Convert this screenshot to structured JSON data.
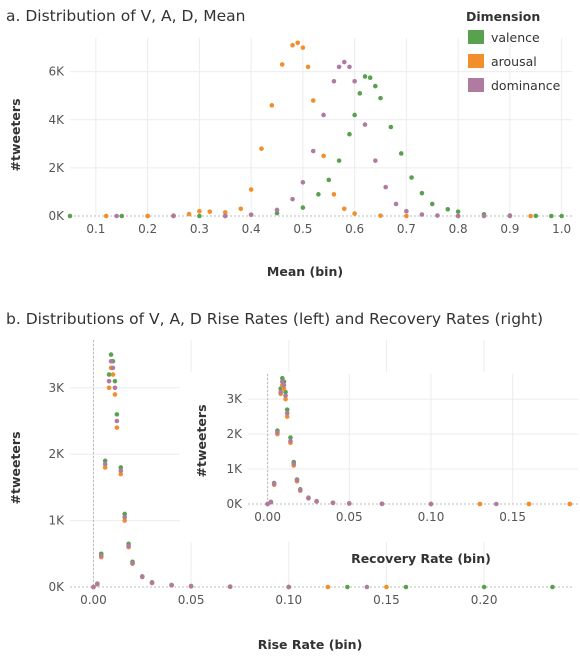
{
  "colors": {
    "valence": "#59a14f",
    "arousal": "#f28e2b",
    "dominance": "#b07aa1"
  },
  "chart_data": [
    {
      "type": "scatter",
      "title": "a. Distribution of V, A, D, Mean",
      "xlabel": "Mean (bin)",
      "ylabel": "#tweeters",
      "xlim": [
        0.05,
        1.02
      ],
      "ylim": [
        0,
        7400
      ],
      "xticks": [
        {
          "v": 0.1,
          "label": "0.1"
        },
        {
          "v": 0.2,
          "label": "0.2"
        },
        {
          "v": 0.3,
          "label": "0.3"
        },
        {
          "v": 0.4,
          "label": "0.4"
        },
        {
          "v": 0.5,
          "label": "0.5"
        },
        {
          "v": 0.6,
          "label": "0.6"
        },
        {
          "v": 0.7,
          "label": "0.7"
        },
        {
          "v": 0.8,
          "label": "0.8"
        },
        {
          "v": 0.9,
          "label": "0.9"
        },
        {
          "v": 1.0,
          "label": "1.0"
        }
      ],
      "yticks": [
        {
          "v": 0,
          "label": "0K"
        },
        {
          "v": 2000,
          "label": "2K"
        },
        {
          "v": 4000,
          "label": "4K"
        },
        {
          "v": 6000,
          "label": "6K"
        }
      ],
      "grid": true,
      "legend": {
        "title": "Dimension",
        "position": "top-right",
        "items": [
          {
            "key": "valence",
            "label": "valence"
          },
          {
            "key": "arousal",
            "label": "arousal"
          },
          {
            "key": "dominance",
            "label": "dominance"
          }
        ]
      },
      "series": [
        {
          "key": "valence",
          "x": [
            0.05,
            0.15,
            0.2,
            0.25,
            0.3,
            0.35,
            0.4,
            0.45,
            0.5,
            0.53,
            0.55,
            0.57,
            0.59,
            0.6,
            0.61,
            0.62,
            0.63,
            0.64,
            0.65,
            0.67,
            0.69,
            0.71,
            0.73,
            0.75,
            0.78,
            0.8,
            0.85,
            0.9,
            0.95,
            0.98,
            1.0
          ],
          "y": [
            0,
            0,
            0,
            0,
            0,
            0,
            50,
            120,
            350,
            900,
            1500,
            2300,
            3400,
            4200,
            5100,
            5800,
            5750,
            5400,
            4900,
            3700,
            2600,
            1600,
            950,
            500,
            280,
            180,
            70,
            20,
            5,
            0,
            0
          ]
        },
        {
          "key": "arousal",
          "x": [
            0.12,
            0.2,
            0.25,
            0.28,
            0.3,
            0.32,
            0.35,
            0.38,
            0.4,
            0.42,
            0.44,
            0.46,
            0.48,
            0.49,
            0.5,
            0.51,
            0.52,
            0.54,
            0.56,
            0.58,
            0.6,
            0.65,
            0.7,
            0.8,
            0.94
          ],
          "y": [
            0,
            0,
            20,
            80,
            200,
            180,
            150,
            300,
            1100,
            2800,
            4600,
            6300,
            7100,
            7200,
            7000,
            6200,
            4800,
            2500,
            900,
            300,
            100,
            15,
            0,
            0,
            0
          ]
        },
        {
          "key": "dominance",
          "x": [
            0.14,
            0.25,
            0.35,
            0.4,
            0.45,
            0.48,
            0.5,
            0.52,
            0.54,
            0.56,
            0.57,
            0.58,
            0.59,
            0.6,
            0.62,
            0.64,
            0.66,
            0.68,
            0.7,
            0.73,
            0.76,
            0.8,
            0.85,
            0.9
          ],
          "y": [
            0,
            0,
            0,
            50,
            250,
            700,
            1400,
            2700,
            4200,
            5600,
            6200,
            6400,
            6200,
            5600,
            3800,
            2300,
            1200,
            500,
            200,
            60,
            20,
            0,
            0,
            0
          ]
        }
      ]
    },
    {
      "type": "scatter",
      "title": "b. Distributions of V, A, D Rise Rates (left) and Recovery Rates (right)",
      "xlabel": "Rise Rate (bin)",
      "ylabel": "#tweeters",
      "xlim": [
        -0.012,
        0.245
      ],
      "ylim": [
        0,
        3720
      ],
      "xticks": [
        {
          "v": 0.0,
          "label": "0.00"
        },
        {
          "v": 0.05,
          "label": "0.05"
        },
        {
          "v": 0.1,
          "label": "0.10"
        },
        {
          "v": 0.15,
          "label": "0.15"
        },
        {
          "v": 0.2,
          "label": "0.20"
        }
      ],
      "yticks": [
        {
          "v": 0,
          "label": "0K"
        },
        {
          "v": 1000,
          "label": "1K"
        },
        {
          "v": 2000,
          "label": "2K"
        },
        {
          "v": 3000,
          "label": "3K"
        }
      ],
      "grid": true,
      "series": [
        {
          "key": "valence",
          "x": [
            0,
            0.002,
            0.004,
            0.006,
            0.008,
            0.009,
            0.01,
            0.011,
            0.012,
            0.014,
            0.016,
            0.018,
            0.02,
            0.025,
            0.03,
            0.04,
            0.05,
            0.07,
            0.1,
            0.13,
            0.16,
            0.2,
            0.235
          ],
          "y": [
            0,
            50,
            500,
            1900,
            3200,
            3500,
            3400,
            3100,
            2600,
            1800,
            1100,
            650,
            380,
            160,
            70,
            30,
            15,
            5,
            0,
            0,
            0,
            0,
            0
          ]
        },
        {
          "key": "arousal",
          "x": [
            0,
            0.002,
            0.004,
            0.006,
            0.008,
            0.009,
            0.01,
            0.011,
            0.012,
            0.014,
            0.016,
            0.018,
            0.02,
            0.025,
            0.03,
            0.04,
            0.05,
            0.07,
            0.1,
            0.12,
            0.15
          ],
          "y": [
            0,
            40,
            450,
            1800,
            3000,
            3300,
            3200,
            2900,
            2400,
            1700,
            1000,
            600,
            350,
            150,
            60,
            25,
            10,
            3,
            0,
            0,
            0
          ]
        },
        {
          "key": "dominance",
          "x": [
            0,
            0.002,
            0.004,
            0.006,
            0.008,
            0.009,
            0.01,
            0.011,
            0.012,
            0.014,
            0.016,
            0.018,
            0.02,
            0.025,
            0.03,
            0.04,
            0.05,
            0.07,
            0.1,
            0.14
          ],
          "y": [
            0,
            45,
            470,
            1850,
            3100,
            3400,
            3300,
            3000,
            2500,
            1750,
            1050,
            620,
            360,
            155,
            65,
            28,
            12,
            4,
            0,
            0
          ]
        }
      ]
    },
    {
      "type": "scatter",
      "title": "",
      "xlabel": "Recovery Rate (bin)",
      "ylabel": "#tweeters",
      "xlim": [
        -0.012,
        0.19
      ],
      "ylim": [
        0,
        3720
      ],
      "xticks": [
        {
          "v": 0.0,
          "label": "0.00"
        },
        {
          "v": 0.05,
          "label": "0.05"
        },
        {
          "v": 0.1,
          "label": "0.10"
        },
        {
          "v": 0.15,
          "label": "0.15"
        }
      ],
      "yticks": [
        {
          "v": 0,
          "label": "0K"
        },
        {
          "v": 1000,
          "label": "1K"
        },
        {
          "v": 2000,
          "label": "2K"
        },
        {
          "v": 3000,
          "label": "3K"
        }
      ],
      "grid": true,
      "series": [
        {
          "key": "valence",
          "x": [
            0,
            0.002,
            0.004,
            0.006,
            0.008,
            0.009,
            0.01,
            0.011,
            0.012,
            0.014,
            0.016,
            0.018,
            0.02,
            0.025,
            0.03,
            0.04,
            0.05,
            0.07,
            0.1,
            0.13,
            0.16,
            0.185
          ],
          "y": [
            0,
            60,
            600,
            2100,
            3300,
            3600,
            3500,
            3200,
            2700,
            1900,
            1200,
            700,
            420,
            180,
            80,
            35,
            18,
            6,
            0,
            0,
            0,
            0
          ]
        },
        {
          "key": "arousal",
          "x": [
            0,
            0.002,
            0.004,
            0.006,
            0.008,
            0.009,
            0.01,
            0.011,
            0.012,
            0.014,
            0.016,
            0.018,
            0.02,
            0.025,
            0.03,
            0.04,
            0.05,
            0.07,
            0.1,
            0.13,
            0.16,
            0.185
          ],
          "y": [
            0,
            50,
            550,
            2000,
            3150,
            3400,
            3300,
            3000,
            2500,
            1750,
            1100,
            650,
            380,
            160,
            70,
            30,
            15,
            5,
            0,
            0,
            0,
            0
          ]
        },
        {
          "key": "dominance",
          "x": [
            0,
            0.002,
            0.004,
            0.006,
            0.008,
            0.009,
            0.01,
            0.011,
            0.012,
            0.014,
            0.016,
            0.018,
            0.02,
            0.025,
            0.03,
            0.04,
            0.05,
            0.07,
            0.1,
            0.14
          ],
          "y": [
            0,
            55,
            580,
            2050,
            3200,
            3500,
            3400,
            3100,
            2600,
            1800,
            1150,
            680,
            400,
            170,
            75,
            32,
            16,
            5,
            0,
            0
          ]
        }
      ]
    }
  ]
}
